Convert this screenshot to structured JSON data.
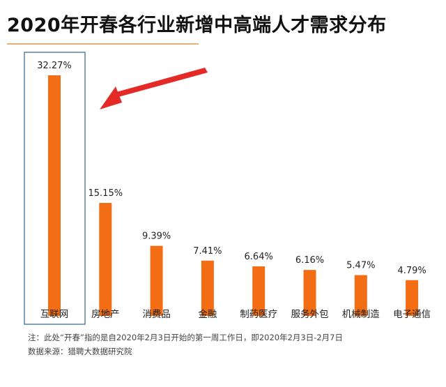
{
  "title": "2020年开春各行业新增中高端人才需求分布",
  "notes": {
    "line1": "注：此处“开春”指的是自2020年2月3日开始的第一周工作日，即2020年2月3日-2月7日",
    "line2": "数据来源：猎聘大数据研究院"
  },
  "colors": {
    "bar": "#f26d13",
    "highlight_box": "#3f6e92",
    "arrow": "#e32a26",
    "title_rule": "#e3b07a"
  },
  "chart_data": {
    "type": "bar",
    "title": "2020年开春各行业新增中高端人才需求分布",
    "categories": [
      "互联网",
      "房地产",
      "消费品",
      "金融",
      "制药医疗",
      "服务外包",
      "机械制造",
      "电子通信"
    ],
    "values": [
      32.27,
      15.15,
      9.39,
      7.41,
      6.64,
      6.16,
      5.47,
      4.79
    ],
    "value_labels": [
      "32.27%",
      "15.15%",
      "9.39%",
      "7.41%",
      "6.64%",
      "6.16%",
      "5.47%",
      "4.79%"
    ],
    "unit": "%",
    "ylim": [
      0,
      32.27
    ],
    "grid": false,
    "legend": "none",
    "highlighted_category": "互联网"
  }
}
